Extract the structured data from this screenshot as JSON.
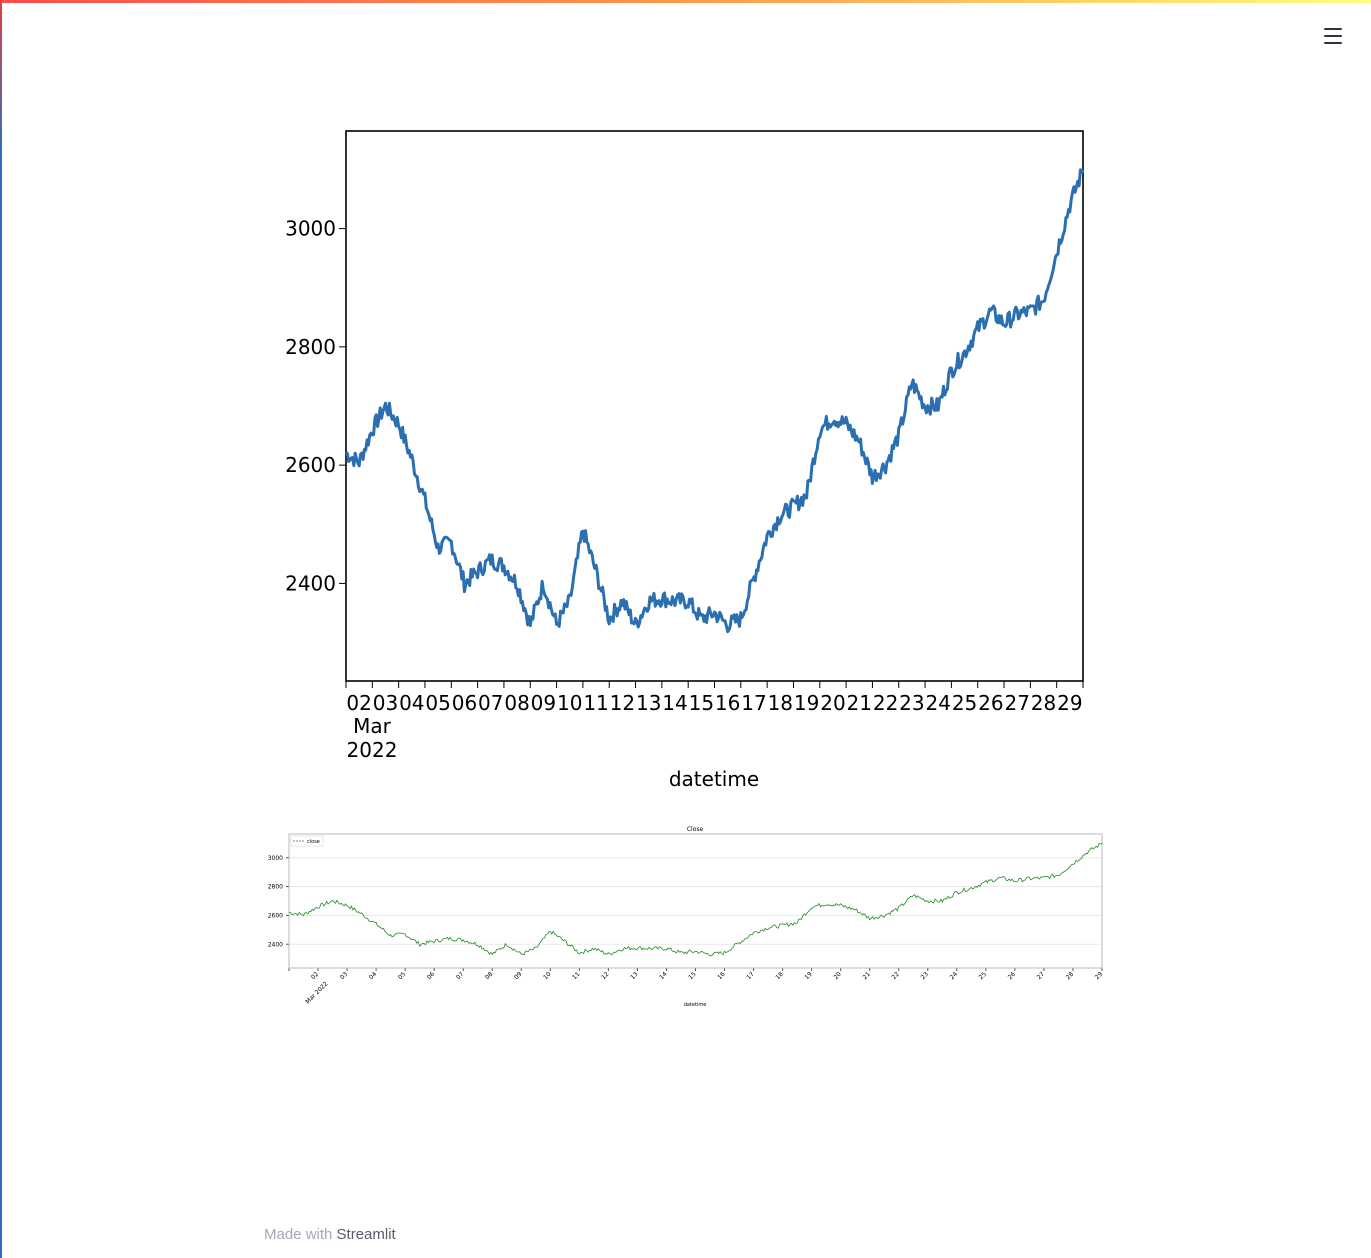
{
  "app": {
    "menu_icon": "hamburger-menu-icon"
  },
  "footer": {
    "made_with": "Made with",
    "brand": "Streamlit"
  },
  "colors": {
    "main_line": "#2c6fb0",
    "mini_line": "#228b22",
    "accent_top": "#ff4b4b"
  },
  "chart_data": [
    {
      "type": "line",
      "title": "",
      "xlabel": "datetime",
      "ylabel": "",
      "x_ticks": [
        "02",
        "03",
        "04",
        "05",
        "06",
        "07",
        "08",
        "09",
        "10",
        "11",
        "12",
        "13",
        "14",
        "15",
        "16",
        "17",
        "18",
        "19",
        "20",
        "21",
        "22",
        "23",
        "24",
        "25",
        "26",
        "27",
        "28",
        "29"
      ],
      "x_month_label": "Mar",
      "x_year_label": "2022",
      "y_ticks": [
        2400,
        2600,
        2800,
        3000
      ],
      "xlim": [
        "2022-03-01",
        "2022-03-29"
      ],
      "ylim": [
        2235,
        3165
      ],
      "grid": false,
      "series": [
        {
          "x": [
            "03-01",
            "03-01 12h",
            "03-02",
            "03-02 12h",
            "03-03",
            "03-03 12h",
            "03-04",
            "03-04 12h",
            "03-05",
            "03-05 12h",
            "03-06",
            "03-06 12h",
            "03-07",
            "03-07 12h",
            "03-08",
            "03-08 12h",
            "03-09",
            "03-09 12h",
            "03-10",
            "03-10 12h",
            "03-11",
            "03-11 12h",
            "03-12",
            "03-12 12h",
            "03-13",
            "03-13 12h",
            "03-14",
            "03-14 12h",
            "03-15",
            "03-15 12h",
            "03-16",
            "03-16 12h",
            "03-17",
            "03-17 12h",
            "03-18",
            "03-18 12h",
            "03-19",
            "03-19 12h",
            "03-20",
            "03-20 12h",
            "03-21",
            "03-21 12h",
            "03-22",
            "03-22 12h",
            "03-23",
            "03-23 12h",
            "03-24",
            "03-24 12h",
            "03-25",
            "03-25 12h",
            "03-26",
            "03-26 12h",
            "03-27",
            "03-27 12h",
            "03-28",
            "03-28 12h",
            "03-29"
          ],
          "values": [
            2620,
            2605,
            2660,
            2700,
            2670,
            2610,
            2540,
            2460,
            2470,
            2400,
            2420,
            2440,
            2430,
            2400,
            2330,
            2400,
            2330,
            2370,
            2490,
            2420,
            2340,
            2370,
            2330,
            2370,
            2375,
            2370,
            2370,
            2340,
            2350,
            2330,
            2340,
            2410,
            2480,
            2515,
            2530,
            2550,
            2660,
            2680,
            2670,
            2640,
            2580,
            2600,
            2650,
            2740,
            2700,
            2700,
            2760,
            2790,
            2830,
            2860,
            2840,
            2855,
            2860,
            2880,
            2960,
            3040,
            3100
          ]
        }
      ]
    },
    {
      "type": "line",
      "title": "Close",
      "xlabel": "datetime",
      "ylabel": "",
      "legend": "top-left",
      "x_ticks": [
        "02",
        "03",
        "04",
        "05",
        "06",
        "07",
        "08",
        "09",
        "10",
        "11",
        "12",
        "13",
        "14",
        "15",
        "16",
        "17",
        "18",
        "19",
        "20",
        "21",
        "22",
        "23",
        "24",
        "25",
        "26",
        "27",
        "28",
        "29"
      ],
      "x_month_label": "Mar",
      "x_year_label": "2022",
      "y_ticks": [
        2400,
        2600,
        2800,
        3000
      ],
      "ylim": [
        2235,
        3165
      ],
      "grid": true,
      "series": [
        {
          "name": "close",
          "x": [
            "03-01",
            "03-01 12h",
            "03-02",
            "03-02 12h",
            "03-03",
            "03-03 12h",
            "03-04",
            "03-04 12h",
            "03-05",
            "03-05 12h",
            "03-06",
            "03-06 12h",
            "03-07",
            "03-07 12h",
            "03-08",
            "03-08 12h",
            "03-09",
            "03-09 12h",
            "03-10",
            "03-10 12h",
            "03-11",
            "03-11 12h",
            "03-12",
            "03-12 12h",
            "03-13",
            "03-13 12h",
            "03-14",
            "03-14 12h",
            "03-15",
            "03-15 12h",
            "03-16",
            "03-16 12h",
            "03-17",
            "03-17 12h",
            "03-18",
            "03-18 12h",
            "03-19",
            "03-19 12h",
            "03-20",
            "03-20 12h",
            "03-21",
            "03-21 12h",
            "03-22",
            "03-22 12h",
            "03-23",
            "03-23 12h",
            "03-24",
            "03-24 12h",
            "03-25",
            "03-25 12h",
            "03-26",
            "03-26 12h",
            "03-27",
            "03-27 12h",
            "03-28",
            "03-28 12h",
            "03-29"
          ],
          "values": [
            2620,
            2605,
            2660,
            2700,
            2670,
            2610,
            2540,
            2460,
            2470,
            2400,
            2420,
            2440,
            2430,
            2400,
            2330,
            2400,
            2330,
            2370,
            2490,
            2420,
            2340,
            2370,
            2330,
            2370,
            2375,
            2370,
            2370,
            2340,
            2350,
            2330,
            2340,
            2410,
            2480,
            2515,
            2530,
            2550,
            2660,
            2680,
            2670,
            2640,
            2580,
            2600,
            2650,
            2740,
            2700,
            2700,
            2760,
            2790,
            2830,
            2860,
            2840,
            2855,
            2860,
            2880,
            2960,
            3040,
            3100
          ]
        }
      ]
    }
  ]
}
